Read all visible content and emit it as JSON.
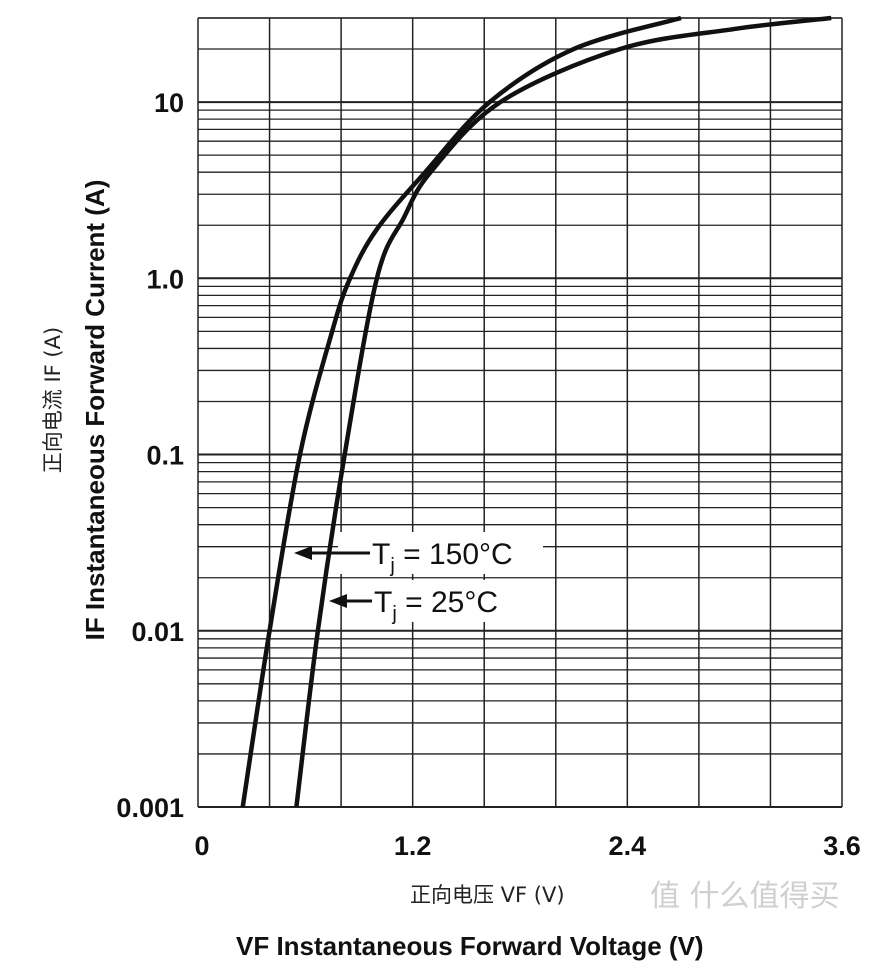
{
  "chart_data": {
    "type": "line",
    "xlabel": "VF Instantaneous Forward Voltage (V)",
    "xlabel_cn": "正向电压  VF (V)",
    "ylabel": "IF Instantaneous Forward Current (A)",
    "ylabel_cn": "正向电流  IF (A)",
    "xlim": [
      0,
      3.6
    ],
    "ylim": [
      0.001,
      30
    ],
    "yscale": "log",
    "grid": true,
    "x_ticks": [
      0,
      1.2,
      2.4,
      3.6
    ],
    "x_tick_labels": [
      "0",
      "1.2",
      "2.4",
      "3.6"
    ],
    "y_ticks": [
      0.001,
      0.01,
      0.1,
      1,
      10
    ],
    "y_tick_labels": [
      "0.001",
      "0.01",
      "0.1",
      "1.0",
      "10"
    ],
    "series": [
      {
        "name": "Tj = 150°C",
        "label_main": "T",
        "label_sub": "j",
        "label_rest": " = 150°C",
        "x": [
          0.25,
          0.4,
          0.57,
          0.75,
          0.85,
          1.0,
          1.27,
          1.63,
          2.1,
          2.7
        ],
        "y": [
          0.001,
          0.01,
          0.1,
          0.5,
          1.0,
          1.9,
          4,
          10,
          20,
          30
        ]
      },
      {
        "name": "Tj = 25°C",
        "label_main": "T",
        "label_sub": "j",
        "label_rest": " = 25°C",
        "x": [
          0.55,
          0.67,
          0.82,
          1.0,
          1.15,
          1.3,
          1.69,
          2.36,
          3.0,
          3.54
        ],
        "y": [
          0.001,
          0.01,
          0.1,
          1.0,
          2.2,
          4,
          10,
          20,
          26,
          30
        ]
      }
    ]
  },
  "watermark": "值 什么值得买"
}
